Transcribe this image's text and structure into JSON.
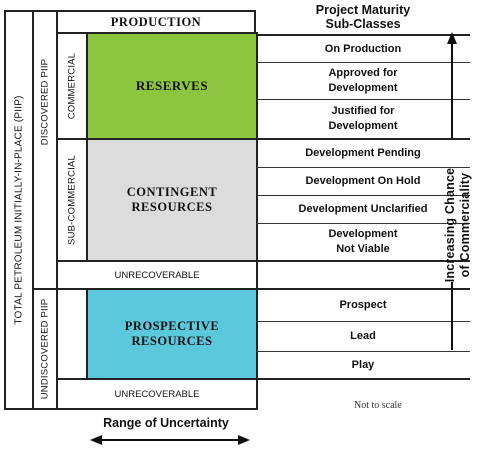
{
  "header": {
    "production": "PRODUCTION",
    "subclass_title_line1": "Project Maturity",
    "subclass_title_line2": "Sub-Classes"
  },
  "left_labels": {
    "piip": "TOTAL PETROLEUM INITIALLY-IN-PLACE (PIIP)",
    "discovered": "DISCOVERED PIIP",
    "undiscovered": "UNDISCOVERED PIIP",
    "commercial": "COMMERCIAL",
    "sub_commercial": "SUB-COMMERCIAL"
  },
  "blocks": {
    "reserves": "RESERVES",
    "contingent_line1": "CONTINGENT",
    "contingent_line2": "RESOURCES",
    "prospective_line1": "PROSPECTIVE",
    "prospective_line2": "RESOURCES",
    "unrecoverable_top": "UNRECOVERABLE",
    "unrecoverable_bottom": "UNRECOVERABLE"
  },
  "colors": {
    "reserves": "#8cc63f",
    "contingent": "#dcdcdc",
    "prospective": "#5bc8dc"
  },
  "subclasses": [
    {
      "line1": "On Production",
      "line2": ""
    },
    {
      "line1": "Approved for",
      "line2": "Development"
    },
    {
      "line1": "Justified for",
      "line2": "Development"
    },
    {
      "line1": "Development Pending",
      "line2": ""
    },
    {
      "line1": "Development On Hold",
      "line2": ""
    },
    {
      "line1": "Development Unclarified",
      "line2": ""
    },
    {
      "line1": "Development",
      "line2": "Not Viable"
    },
    {
      "line1": "Prospect",
      "line2": ""
    },
    {
      "line1": "Lead",
      "line2": ""
    },
    {
      "line1": "Play",
      "line2": ""
    }
  ],
  "right_axis": {
    "line1": "Increasing Chance",
    "line2": "of Commerciality"
  },
  "footer": {
    "not_to_scale": "Not to scale",
    "range_of_uncertainty": "Range of Uncertainty"
  }
}
